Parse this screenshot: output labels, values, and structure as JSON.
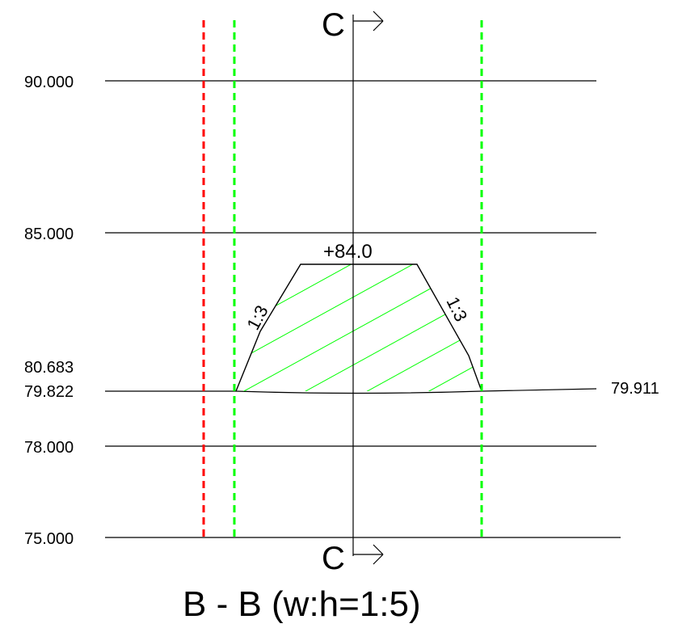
{
  "title": "B - B (w:h=1:5)",
  "section_marker": "C",
  "crest_label": "+84.0",
  "slope_left": "1:3",
  "slope_right": "1:3",
  "elevations": {
    "e90": "90.000",
    "e85": "85.000",
    "e80683": "80.683",
    "e79822": "79.822",
    "e78": "78.000",
    "e75": "75.000",
    "right_ground": "79.911"
  },
  "colors": {
    "line": "#000000",
    "boundary_red": "#ff0000",
    "boundary_green": "#00ff00",
    "hatch": "#00ff00"
  }
}
